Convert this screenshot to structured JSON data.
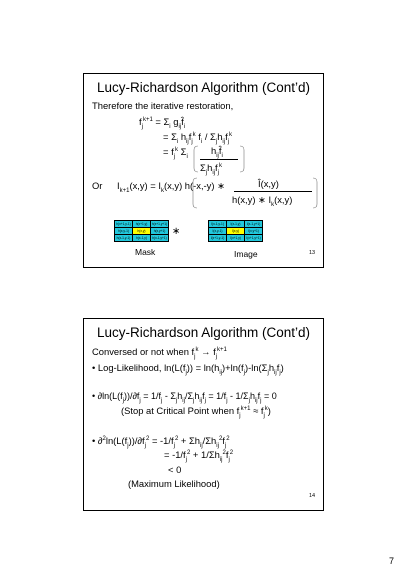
{
  "slide1": {
    "title": "Lucy-Richardson Algorithm (Cont’d)",
    "line1": "Therefore the iterative restoration,",
    "eq1": "f_j^{k+1} = Σ_i g_ij f̂_i",
    "eq2": "= Σ_i h_ij f_j^k f_i / Σ h_ij f_j^k",
    "eq3a": "= f_j^k Σ_i",
    "eq3b": "h_ij f_i",
    "eq3c": "Σ_j h_ij f_j^k",
    "or": "Or",
    "eq4": "I_{k+1}(x,y) = I_k(x,y) {h(-x,-y) ∗",
    "eq4num": "Î(x,y)",
    "eq4den": "h(x,y) ∗ I_k(x,y)",
    "mask_label": "Mask",
    "image_label": "Image",
    "operator": "∗",
    "mask_cells": [
      [
        "h(x+1,y-1)",
        "h(x+1,y)",
        "h(x+1,y+1)"
      ],
      [
        "h(x,y-1)",
        "h(x,y)",
        "h(x,y+1)"
      ],
      [
        "h(x-1,y-1)",
        "h(x-1,y)",
        "h(x-1,y+1)"
      ]
    ],
    "image_cells": [
      [
        "I(x-1,y-1)",
        "I(x-1,y)",
        "I(x-1,y+1)"
      ],
      [
        "I(x,y-1)",
        "I(x,y)",
        "I(x,y+1)"
      ],
      [
        "I(x+1,y-1)",
        "I(x+1,y)",
        "I(x+1,y+1)"
      ]
    ],
    "page": "13"
  },
  "slide2": {
    "title": "Lucy-Richardson Algorithm (Cont’d)",
    "line1": "Conversed or not when f_j^k → f_j^{k+1}",
    "bullet1": "• Log-Likelihood, ln(L(f_j)) = ln(h_ij)+ln(f_j)-ln(Σ_j h_ij f_j)",
    "bullet2": "• ∂ln(L(f_j))/∂f_j = 1/f_j - Σ_j h_ij/Σ_j h_ij f_j = 1/f_j - 1/Σ_j h_ij f_j = 0",
    "line2": "(Stop at Critical Point when f_j^{k+1} ≈ f_j^k)",
    "bullet3": "• ∂²ln(L(f_j))/∂f_j² = -1/f_j² + Σ h_ij/Σ h_ij² f_j²",
    "line3": "= -1/f_j² + 1/Σ h_ij² f_j²",
    "line4": "< 0",
    "line5": "(Maximum Likelihood)",
    "page": "14"
  },
  "page_number": "7"
}
